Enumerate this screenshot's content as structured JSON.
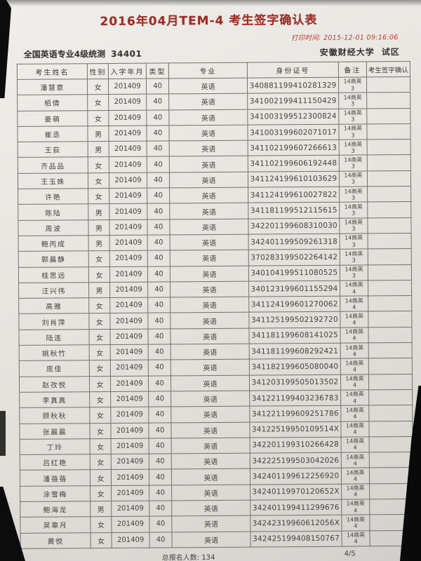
{
  "title": "2016年04月TEM-4 考生签字确认表",
  "print_time_label": "打印时间:",
  "print_time": "2015-12-01 09:16:06",
  "exam_name": "全国英语专业4级统测",
  "exam_code": "34401",
  "site_name": "安徽财经大学",
  "site_suffix": "试区",
  "table": {
    "headers": [
      "考生姓名",
      "性别",
      "入学年月",
      "类型",
      "专业",
      "身份证号",
      "备注",
      "考生签字确认"
    ],
    "rows": [
      {
        "name": "潘慧意",
        "gender": "女",
        "year": "201409",
        "type": "40",
        "major": "英语",
        "id": "340881199410281329",
        "remark1": "14商英",
        "remark2": "3",
        "sign": ""
      },
      {
        "name": "栢倩",
        "gender": "女",
        "year": "201409",
        "type": "40",
        "major": "英语",
        "id": "341002199411150429",
        "remark1": "14商英",
        "remark2": "3",
        "sign": ""
      },
      {
        "name": "姜萌",
        "gender": "女",
        "year": "201409",
        "type": "40",
        "major": "英语",
        "id": "341003199512300824",
        "remark1": "14商英",
        "remark2": "3",
        "sign": ""
      },
      {
        "name": "崔丞",
        "gender": "男",
        "year": "201409",
        "type": "40",
        "major": "英语",
        "id": "341003199602071017",
        "remark1": "14商英",
        "remark2": "3",
        "sign": ""
      },
      {
        "name": "王荻",
        "gender": "男",
        "year": "201409",
        "type": "40",
        "major": "英语",
        "id": "341102199607266613",
        "remark1": "14商英",
        "remark2": "3",
        "sign": ""
      },
      {
        "name": "齐品品",
        "gender": "女",
        "year": "201409",
        "type": "40",
        "major": "英语",
        "id": "341102199606192448",
        "remark1": "14商英",
        "remark2": "3",
        "sign": ""
      },
      {
        "name": "王玉姝",
        "gender": "女",
        "year": "201409",
        "type": "40",
        "major": "英语",
        "id": "341124199610103629",
        "remark1": "14商英",
        "remark2": "3",
        "sign": ""
      },
      {
        "name": "许艳",
        "gender": "女",
        "year": "201409",
        "type": "40",
        "major": "英语",
        "id": "341124199610027822",
        "remark1": "14商英",
        "remark2": "3",
        "sign": ""
      },
      {
        "name": "陈陆",
        "gender": "男",
        "year": "201409",
        "type": "40",
        "major": "英语",
        "id": "341181199512115615",
        "remark1": "14商英",
        "remark2": "3",
        "sign": ""
      },
      {
        "name": "周波",
        "gender": "男",
        "year": "201409",
        "type": "40",
        "major": "英语",
        "id": "342201199608310030",
        "remark1": "14商英",
        "remark2": "3",
        "sign": ""
      },
      {
        "name": "鲍丙成",
        "gender": "男",
        "year": "201409",
        "type": "40",
        "major": "英语",
        "id": "342401199509261318",
        "remark1": "14商英",
        "remark2": "3",
        "sign": ""
      },
      {
        "name": "郭晨静",
        "gender": "女",
        "year": "201409",
        "type": "40",
        "major": "英语",
        "id": "370283199502264142",
        "remark1": "14商英",
        "remark2": "3",
        "sign": ""
      },
      {
        "name": "桂思远",
        "gender": "女",
        "year": "201409",
        "type": "40",
        "major": "英语",
        "id": "340104199511080525",
        "remark1": "14商英",
        "remark2": "3",
        "sign": ""
      },
      {
        "name": "汪兴伟",
        "gender": "男",
        "year": "201409",
        "type": "40",
        "major": "英语",
        "id": "340123199601155294",
        "remark1": "14商英",
        "remark2": "4",
        "sign": ""
      },
      {
        "name": "高雅",
        "gender": "女",
        "year": "201409",
        "type": "40",
        "major": "英语",
        "id": "341124199601270062",
        "remark1": "14商英",
        "remark2": "4",
        "sign": ""
      },
      {
        "name": "刘肖萍",
        "gender": "女",
        "year": "201409",
        "type": "40",
        "major": "英语",
        "id": "341125199502192720",
        "remark1": "14商英",
        "remark2": "4",
        "sign": ""
      },
      {
        "name": "陆连",
        "gender": "女",
        "year": "201409",
        "type": "40",
        "major": "英语",
        "id": "341181199608141025",
        "remark1": "14商英",
        "remark2": "4",
        "sign": ""
      },
      {
        "name": "姚秋竹",
        "gender": "女",
        "year": "201409",
        "type": "40",
        "major": "英语",
        "id": "341181199608292421",
        "remark1": "14商英",
        "remark2": "4",
        "sign": ""
      },
      {
        "name": "庞佳",
        "gender": "女",
        "year": "201409",
        "type": "40",
        "major": "英语",
        "id": "341182199605080040",
        "remark1": "14商英",
        "remark2": "4",
        "sign": ""
      },
      {
        "name": "赵孜悦",
        "gender": "女",
        "year": "201409",
        "type": "40",
        "major": "英语",
        "id": "341203199505013502",
        "remark1": "14商英",
        "remark2": "4",
        "sign": ""
      },
      {
        "name": "李真真",
        "gender": "女",
        "year": "201409",
        "type": "40",
        "major": "英语",
        "id": "341221199403236783",
        "remark1": "14商英",
        "remark2": "4",
        "sign": ""
      },
      {
        "name": "顾秋秋",
        "gender": "女",
        "year": "201409",
        "type": "40",
        "major": "英语",
        "id": "341221199609251786",
        "remark1": "14商英",
        "remark2": "4",
        "sign": ""
      },
      {
        "name": "张晨晨",
        "gender": "女",
        "year": "201409",
        "type": "40",
        "major": "英语",
        "id": "34122519950109514X",
        "remark1": "14商英",
        "remark2": "4",
        "sign": ""
      },
      {
        "name": "丁玲",
        "gender": "女",
        "year": "201409",
        "type": "40",
        "major": "英语",
        "id": "342201199310266428",
        "remark1": "14商英",
        "remark2": "4",
        "sign": ""
      },
      {
        "name": "吕红艳",
        "gender": "女",
        "year": "201409",
        "type": "40",
        "major": "英语",
        "id": "342225199503042026",
        "remark1": "14商英",
        "remark2": "4",
        "sign": ""
      },
      {
        "name": "潘蓓蓓",
        "gender": "女",
        "year": "201409",
        "type": "40",
        "major": "英语",
        "id": "342401199612256920",
        "remark1": "14商英",
        "remark2": "4",
        "sign": ""
      },
      {
        "name": "涂雪梅",
        "gender": "女",
        "year": "201409",
        "type": "40",
        "major": "英语",
        "id": "34240119970120652X",
        "remark1": "14商英",
        "remark2": "4",
        "sign": ""
      },
      {
        "name": "鲍海龙",
        "gender": "男",
        "year": "201409",
        "type": "40",
        "major": "英语",
        "id": "342401199411299676",
        "remark1": "14商英",
        "remark2": "4",
        "sign": ""
      },
      {
        "name": "吴章月",
        "gender": "女",
        "year": "201409",
        "type": "40",
        "major": "英语",
        "id": "34242319960612056X",
        "remark1": "14商英",
        "remark2": "4",
        "sign": ""
      },
      {
        "name": "黄悦",
        "gender": "女",
        "year": "201409",
        "type": "40",
        "major": "英语",
        "id": "342425199408150767",
        "remark1": "14商英",
        "remark2": "4",
        "sign": ""
      }
    ]
  },
  "footer": {
    "total_label": "总报名人数:",
    "total_value": "134",
    "page_number": "4/5"
  }
}
